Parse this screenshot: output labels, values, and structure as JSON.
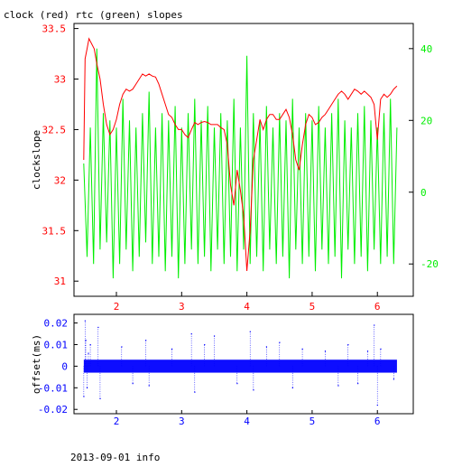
{
  "title": "clock (red) rtc (green) slopes",
  "footer": "2013-09-01 info",
  "colors": {
    "red": "#ff0000",
    "green": "#00ee00",
    "blue": "#0000ff",
    "frame": "#000000"
  },
  "chart_data": [
    {
      "type": "line",
      "ylabel": "clockslope",
      "xlim": [
        1.35,
        6.55
      ],
      "ylim": [
        30.85,
        33.55
      ],
      "y2lim": [
        -29,
        47
      ],
      "xticks": [
        2,
        3,
        4,
        5,
        6
      ],
      "xtick_labels": [
        "2",
        "3",
        "4",
        "5",
        "6"
      ],
      "yticks": [
        31,
        31.5,
        32,
        32.5,
        33,
        33.5
      ],
      "ytick_labels": [
        "31",
        "31.5",
        "32",
        "32.5",
        "33",
        "33.5"
      ],
      "y2ticks": [
        -20,
        0,
        20,
        40
      ],
      "y2tick_labels": [
        "-20",
        "0",
        "20",
        "40"
      ],
      "grid": false,
      "series": [
        {
          "name": "clock",
          "axis": "left",
          "color": "#ff0000",
          "x": [
            1.5,
            1.52,
            1.55,
            1.58,
            1.62,
            1.66,
            1.7,
            1.75,
            1.8,
            1.85,
            1.9,
            1.95,
            2.0,
            2.05,
            2.1,
            2.15,
            2.2,
            2.25,
            2.3,
            2.35,
            2.4,
            2.45,
            2.5,
            2.55,
            2.6,
            2.65,
            2.7,
            2.75,
            2.8,
            2.85,
            2.9,
            2.95,
            3.0,
            3.05,
            3.1,
            3.15,
            3.2,
            3.25,
            3.3,
            3.35,
            3.4,
            3.45,
            3.5,
            3.55,
            3.6,
            3.65,
            3.7,
            3.75,
            3.8,
            3.85,
            3.9,
            3.95,
            4.0,
            4.05,
            4.1,
            4.15,
            4.2,
            4.25,
            4.3,
            4.35,
            4.4,
            4.45,
            4.5,
            4.55,
            4.6,
            4.65,
            4.7,
            4.75,
            4.8,
            4.85,
            4.9,
            4.95,
            5.0,
            5.05,
            5.1,
            5.15,
            5.2,
            5.25,
            5.3,
            5.35,
            5.4,
            5.45,
            5.5,
            5.55,
            5.6,
            5.65,
            5.7,
            5.75,
            5.8,
            5.85,
            5.9,
            5.95,
            6.0,
            6.05,
            6.1,
            6.15,
            6.2,
            6.25,
            6.3
          ],
          "values": [
            32.2,
            33.2,
            33.3,
            33.4,
            33.35,
            33.3,
            33.15,
            33.0,
            32.75,
            32.55,
            32.45,
            32.5,
            32.6,
            32.75,
            32.85,
            32.9,
            32.88,
            32.9,
            32.95,
            33.0,
            33.05,
            33.03,
            33.05,
            33.03,
            33.02,
            32.95,
            32.85,
            32.75,
            32.65,
            32.62,
            32.55,
            32.5,
            32.5,
            32.45,
            32.42,
            32.5,
            32.57,
            32.55,
            32.57,
            32.58,
            32.57,
            32.55,
            32.55,
            32.55,
            32.52,
            32.5,
            32.35,
            31.95,
            31.75,
            32.1,
            31.9,
            31.65,
            31.1,
            31.5,
            32.2,
            32.4,
            32.6,
            32.5,
            32.6,
            32.65,
            32.65,
            32.6,
            32.6,
            32.65,
            32.7,
            32.62,
            32.45,
            32.2,
            32.1,
            32.35,
            32.55,
            32.65,
            32.62,
            32.55,
            32.57,
            32.62,
            32.65,
            32.7,
            32.75,
            32.8,
            32.85,
            32.88,
            32.85,
            32.8,
            32.85,
            32.9,
            32.88,
            32.85,
            32.88,
            32.85,
            32.82,
            32.75,
            32.4,
            32.8,
            32.85,
            32.82,
            32.85,
            32.9,
            32.93
          ]
        },
        {
          "name": "rtc",
          "axis": "right",
          "color": "#00ee00",
          "x": [
            1.5,
            1.55,
            1.6,
            1.65,
            1.7,
            1.75,
            1.8,
            1.85,
            1.9,
            1.95,
            2.0,
            2.05,
            2.1,
            2.15,
            2.2,
            2.25,
            2.3,
            2.35,
            2.4,
            2.45,
            2.5,
            2.55,
            2.6,
            2.65,
            2.7,
            2.75,
            2.8,
            2.85,
            2.9,
            2.95,
            3.0,
            3.05,
            3.1,
            3.15,
            3.2,
            3.25,
            3.3,
            3.35,
            3.4,
            3.45,
            3.5,
            3.55,
            3.6,
            3.65,
            3.7,
            3.75,
            3.8,
            3.85,
            3.9,
            3.95,
            4.0,
            4.05,
            4.1,
            4.15,
            4.2,
            4.25,
            4.3,
            4.35,
            4.4,
            4.45,
            4.5,
            4.55,
            4.6,
            4.65,
            4.7,
            4.75,
            4.8,
            4.85,
            4.9,
            4.95,
            5.0,
            5.05,
            5.1,
            5.15,
            5.2,
            5.25,
            5.3,
            5.35,
            5.4,
            5.45,
            5.5,
            5.55,
            5.6,
            5.65,
            5.7,
            5.75,
            5.8,
            5.85,
            5.9,
            5.95,
            6.0,
            6.05,
            6.1,
            6.15,
            6.2,
            6.25,
            6.3
          ],
          "values": [
            8,
            -18,
            18,
            -20,
            40,
            -16,
            22,
            -14,
            20,
            -24,
            18,
            -20,
            26,
            -16,
            20,
            -22,
            18,
            -18,
            22,
            -14,
            28,
            -20,
            18,
            -18,
            22,
            -22,
            20,
            -18,
            24,
            -24,
            18,
            -20,
            22,
            -16,
            26,
            -20,
            20,
            -18,
            24,
            -22,
            18,
            -16,
            22,
            -20,
            20,
            -18,
            26,
            -22,
            18,
            -16,
            38,
            -20,
            22,
            -18,
            20,
            -22,
            24,
            -16,
            18,
            -20,
            22,
            -18,
            20,
            -24,
            26,
            -16,
            18,
            -20,
            22,
            -18,
            20,
            -22,
            24,
            -16,
            18,
            -20,
            22,
            -18,
            26,
            -24,
            20,
            -16,
            18,
            -20,
            22,
            -18,
            24,
            -22,
            20,
            -16,
            18,
            -20,
            22,
            -18,
            26,
            -20,
            18
          ]
        }
      ]
    },
    {
      "type": "scatter",
      "ylabel": "offset(ms)",
      "xlim": [
        1.35,
        6.55
      ],
      "ylim": [
        -0.022,
        0.024
      ],
      "xticks": [
        2,
        3,
        4,
        5,
        6
      ],
      "xtick_labels": [
        "2",
        "3",
        "4",
        "5",
        "6"
      ],
      "yticks": [
        -0.02,
        -0.01,
        0,
        0.01,
        0.02
      ],
      "ytick_labels": [
        "-0.02",
        "-0.01",
        "0",
        "0.01",
        "0.02"
      ],
      "grid": false,
      "series": [
        {
          "name": "offset",
          "color": "#0000ff",
          "x": [
            1.5,
            1.52,
            1.53,
            1.55,
            1.57,
            1.6,
            1.72,
            1.75,
            2.08,
            2.25,
            2.45,
            2.5,
            2.85,
            3.15,
            3.2,
            3.35,
            3.5,
            3.85,
            4.05,
            4.1,
            4.3,
            4.5,
            4.7,
            4.85,
            5.2,
            5.4,
            5.55,
            5.7,
            5.85,
            5.95,
            6.0,
            6.05,
            6.25
          ],
          "values": [
            -0.014,
            0.021,
            0.012,
            -0.01,
            0.006,
            0.01,
            0.018,
            -0.015,
            0.009,
            -0.008,
            0.012,
            -0.009,
            0.008,
            0.015,
            -0.012,
            0.01,
            0.014,
            -0.008,
            0.016,
            -0.011,
            0.009,
            0.011,
            -0.01,
            0.008,
            0.007,
            -0.009,
            0.01,
            -0.008,
            0.007,
            0.019,
            -0.018,
            0.008,
            -0.006
          ]
        }
      ]
    }
  ]
}
